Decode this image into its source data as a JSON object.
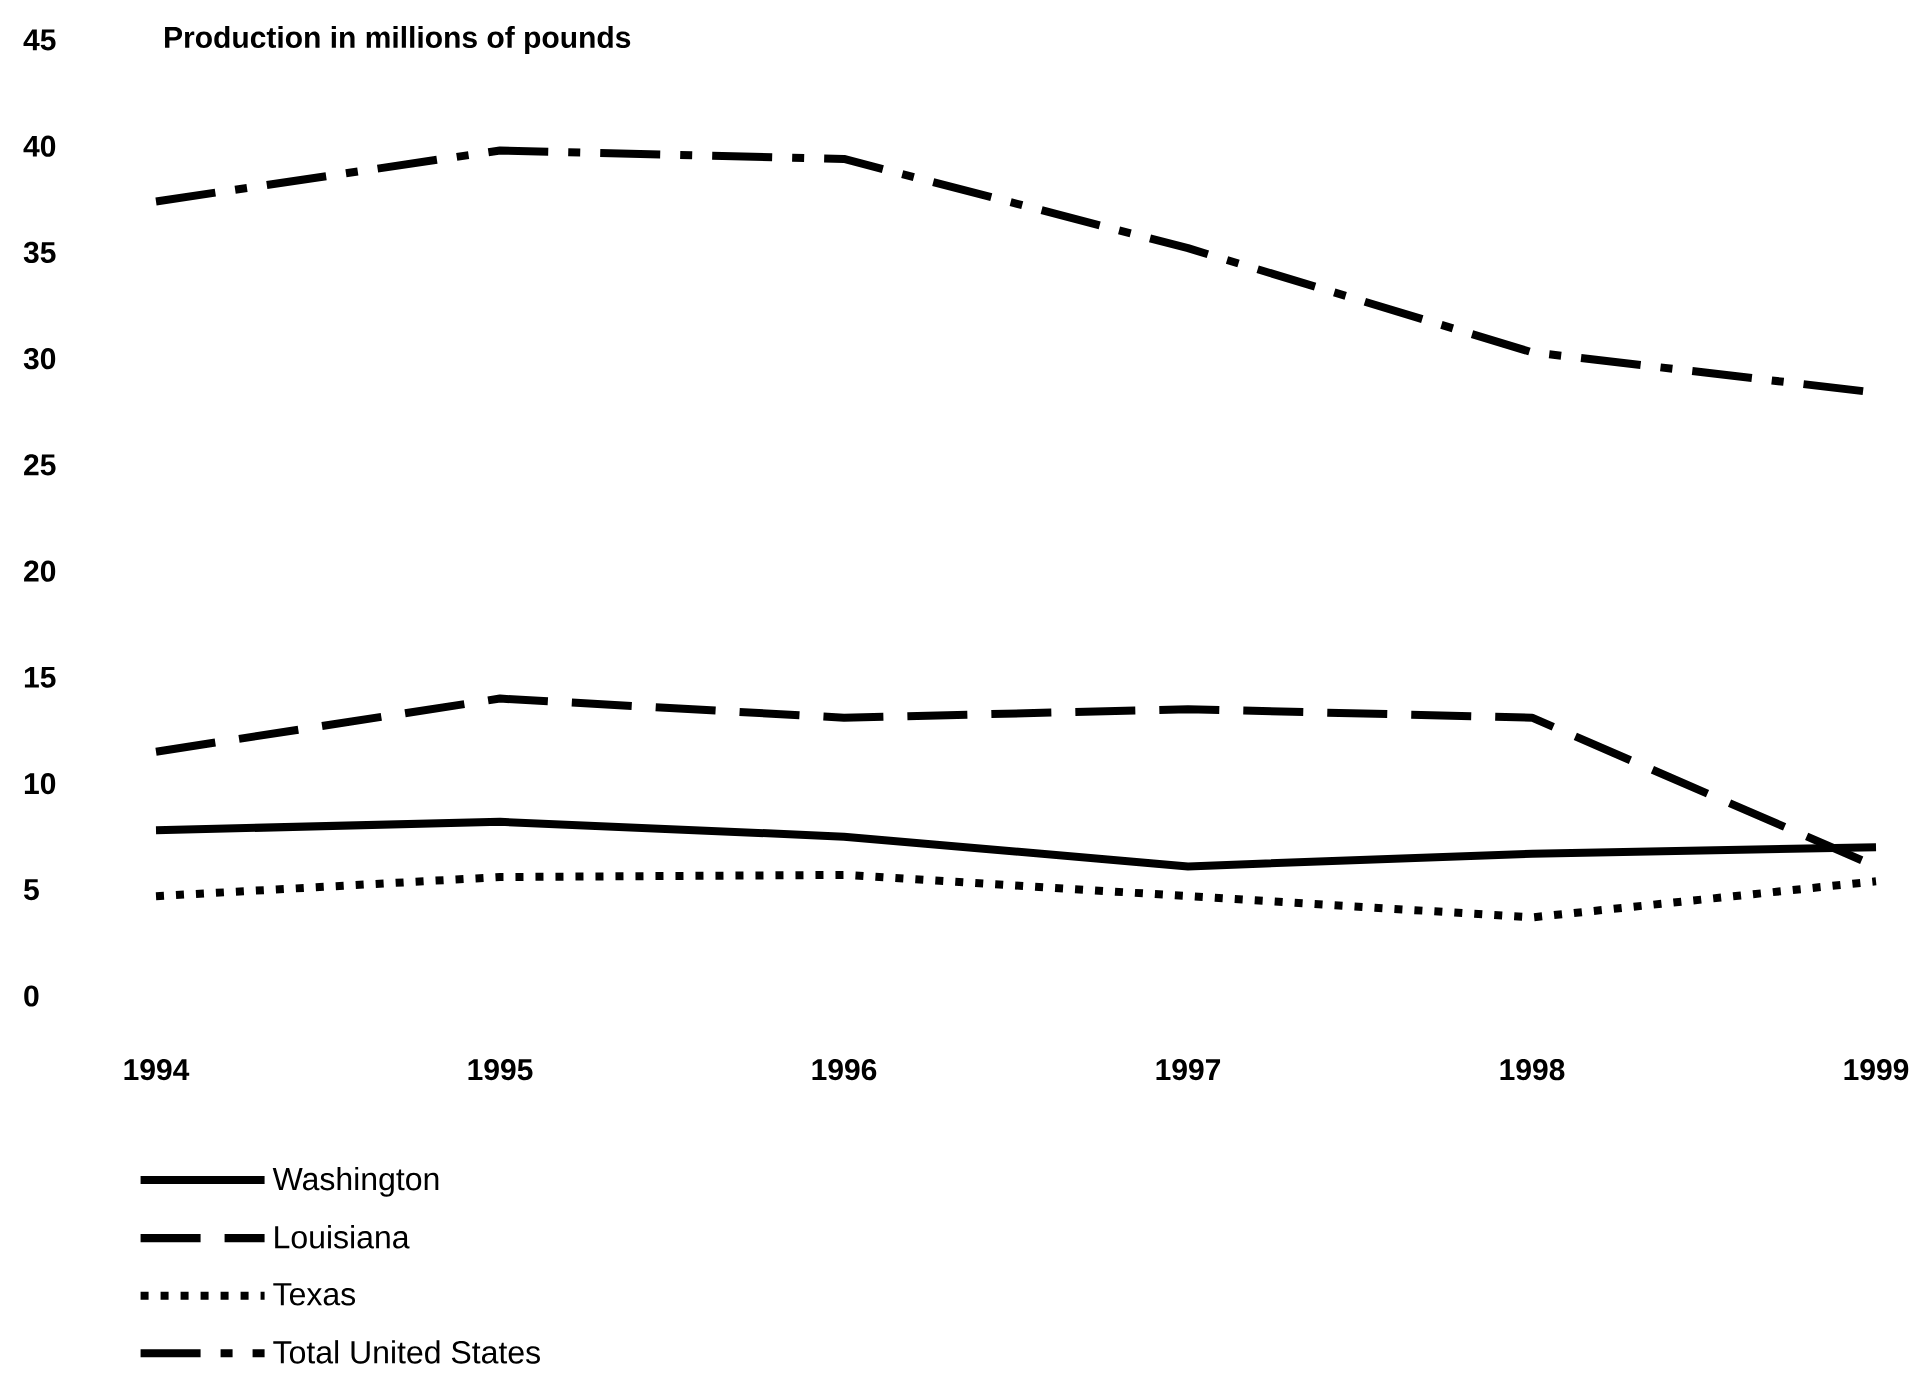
{
  "chart_data": {
    "type": "line",
    "ylabel": "Production in millions of pounds",
    "categories": [
      "1994",
      "1995",
      "1996",
      "1997",
      "1998",
      "1999"
    ],
    "ylim": [
      0,
      45
    ],
    "yticks": [
      0,
      5,
      10,
      15,
      20,
      25,
      30,
      35,
      40,
      45
    ],
    "legend": "bottom",
    "series": [
      {
        "name": "Washington",
        "color": "#000000",
        "line_style": "solid",
        "values": [
          7.8,
          8.2,
          7.5,
          6.1,
          6.7,
          7.0
        ]
      },
      {
        "name": "Louisiana",
        "color": "#000000",
        "line_style": "dashed",
        "values": [
          11.5,
          14.0,
          13.1,
          13.5,
          13.1,
          6.1
        ]
      },
      {
        "name": "Texas",
        "color": "#000000",
        "line_style": "dotted",
        "values": [
          4.7,
          5.6,
          5.7,
          4.7,
          3.7,
          5.4
        ]
      },
      {
        "name": "Total United States",
        "color": "#000000",
        "line_style": "dashdot",
        "values": [
          37.4,
          39.8,
          39.4,
          35.2,
          30.3,
          28.4
        ]
      }
    ]
  }
}
